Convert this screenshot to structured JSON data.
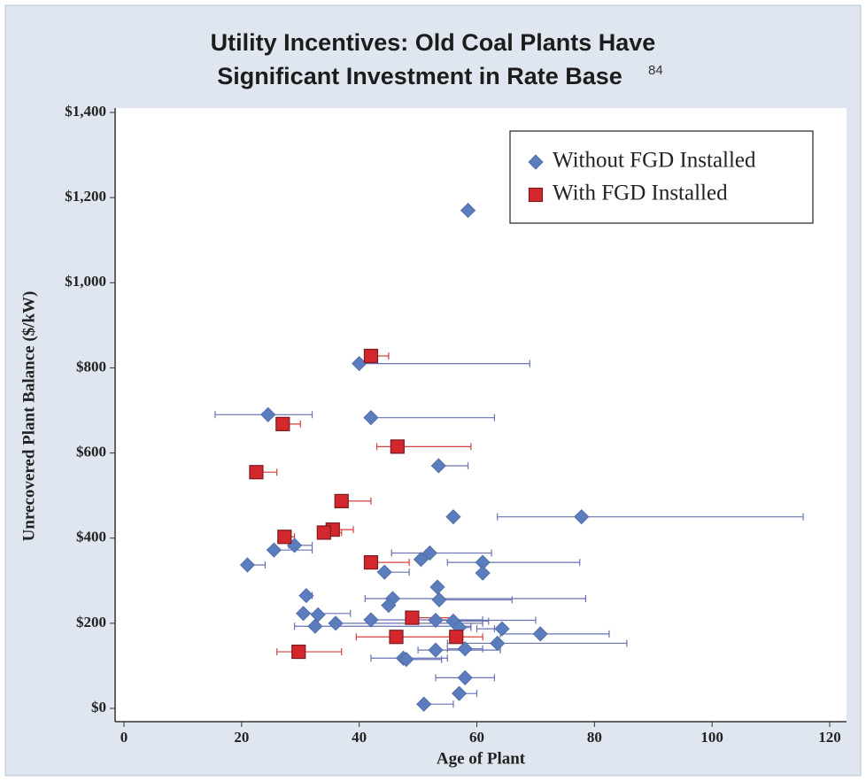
{
  "chart_data": {
    "type": "scatter",
    "title_lines": [
      "Utility Incentives: Old Coal Plants Have",
      "Significant Investment in Rate Base"
    ],
    "title_note": "84",
    "x_label": "Age of Plant",
    "y_label": "Unrecovered Plant Balance ($/kW)",
    "xlim": [
      0,
      120
    ],
    "ylim": [
      0,
      1400
    ],
    "xticks": [
      0,
      20,
      40,
      60,
      80,
      100,
      120
    ],
    "yticks": [
      {
        "value": 0,
        "label": "$0"
      },
      {
        "value": 200,
        "label": "$200"
      },
      {
        "value": 400,
        "label": "$400"
      },
      {
        "value": 600,
        "label": "$600"
      },
      {
        "value": 800,
        "label": "$800"
      },
      {
        "value": 1000,
        "label": "$1,000"
      },
      {
        "value": 1200,
        "label": "$1,200"
      },
      {
        "value": 1400,
        "label": "$1,400"
      }
    ],
    "legend": "upper right",
    "series": [
      {
        "name": "Without FGD Installed",
        "color": "#5b7dbd",
        "marker": "diamond",
        "error_color": "#6a72b3",
        "x": [
          58.5,
          40,
          24.5,
          42,
          53.5,
          56,
          77.8,
          21,
          25.5,
          29,
          52,
          50.5,
          61,
          61,
          44.3,
          31,
          53.3,
          45.7,
          53.6,
          45,
          30.5,
          33,
          42,
          53,
          56,
          57,
          64.3,
          70.8,
          32.5,
          36,
          63.5,
          53,
          58,
          47.5,
          48,
          58,
          57,
          51
        ],
        "values": [
          1170,
          810,
          690,
          683,
          570,
          450,
          450,
          337,
          372,
          383,
          365,
          350,
          343,
          318,
          320,
          265,
          285,
          258,
          255,
          242,
          223,
          220,
          208,
          207,
          205,
          190,
          187,
          175,
          193,
          200,
          153,
          137,
          140,
          118,
          115,
          72,
          35,
          10
        ],
        "x_low": [
          null,
          40,
          15.5,
          42,
          53.5,
          null,
          63.5,
          21,
          25.5,
          28,
          45.5,
          null,
          55,
          null,
          44.3,
          31,
          null,
          41,
          53.6,
          null,
          30.5,
          null,
          42,
          53,
          56,
          57,
          60,
          64,
          29,
          36,
          55,
          50,
          55,
          42,
          48,
          53,
          57,
          51
        ],
        "x_high": [
          null,
          69,
          32,
          63,
          58.5,
          null,
          115.5,
          24,
          32,
          32,
          62.5,
          null,
          77.5,
          null,
          48.5,
          32,
          null,
          78.5,
          66,
          null,
          38.5,
          null,
          61,
          70,
          62,
          59,
          63,
          82.5,
          59,
          61,
          85.5,
          64,
          61,
          55,
          54,
          63,
          60,
          56
        ]
      },
      {
        "name": "With FGD Installed",
        "color": "#d3262d",
        "marker": "square",
        "error_color": "#d6403f",
        "x": [
          42,
          27,
          46.5,
          22.5,
          37,
          35.5,
          34,
          27.3,
          42,
          49,
          46.3,
          56.5,
          29.7
        ],
        "values": [
          828,
          668,
          615,
          555,
          487,
          420,
          413,
          403,
          343,
          213,
          168,
          168,
          133
        ],
        "x_low": [
          42,
          27,
          43,
          22.5,
          37,
          35.5,
          34,
          27.3,
          42,
          49,
          39.5,
          56.5,
          26
        ],
        "x_high": [
          45,
          30,
          59,
          26,
          42,
          39,
          37,
          29,
          48.5,
          56,
          56,
          61,
          37
        ]
      }
    ]
  }
}
